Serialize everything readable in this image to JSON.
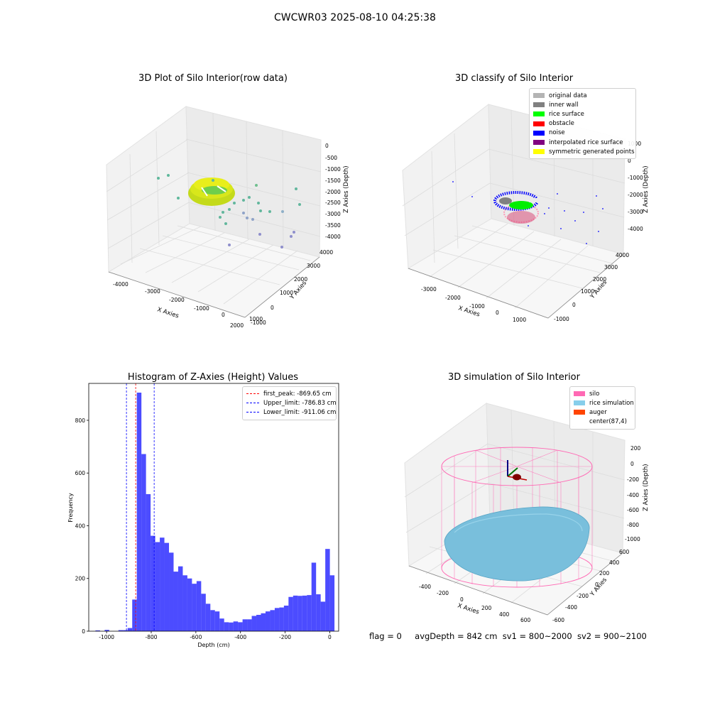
{
  "suptitle": "CWCWR03 2025-08-10 04:25:38",
  "panels": {
    "raw": {
      "title": "3D Plot of Silo Interior(row data)",
      "xlabel": "X Axies",
      "ylabel": "Y Axies",
      "zlabel": "Z Axies (Depth)",
      "xticks": [
        "-4000",
        "-3000",
        "-2000",
        "-1000",
        "0",
        "1000",
        "2000"
      ],
      "yticks": [
        "-1000",
        "0",
        "1000",
        "2000",
        "3000",
        "4000"
      ],
      "zticks": [
        "0",
        "-500",
        "-1000",
        "-1500",
        "-2000",
        "-2500",
        "-3000",
        "-3500",
        "-4000"
      ]
    },
    "classify": {
      "title": "3D classify of Silo Interior",
      "xlabel": "X Axies",
      "ylabel": "Y Axies",
      "zlabel": "Z Axies (Depth)",
      "xticks": [
        "-3000",
        "-2000",
        "-1000",
        "0",
        "1000"
      ],
      "yticks": [
        "-1000",
        "0",
        "1000",
        "2000",
        "3000",
        "4000"
      ],
      "zticks": [
        "1000",
        "0",
        "-1000",
        "-2000",
        "-3000",
        "-4000"
      ],
      "legend": [
        {
          "label": "original data",
          "color": "#b4b4b4"
        },
        {
          "label": "inner wall",
          "color": "#808080"
        },
        {
          "label": "rice surface",
          "color": "#00ff00"
        },
        {
          "label": "obstacle",
          "color": "#ff0000"
        },
        {
          "label": "noise",
          "color": "#0000ff"
        },
        {
          "label": "interpolated rice surface",
          "color": "#800080"
        },
        {
          "label": "symmetric generated points",
          "color": "#ffff00"
        }
      ]
    },
    "simulation": {
      "title": "3D simulation of Silo Interior",
      "xlabel": "X Axies",
      "ylabel": "Y Axies",
      "zlabel": "Z Axies (Depth)",
      "xticks": [
        "-400",
        "-200",
        "0",
        "200",
        "400",
        "600"
      ],
      "yticks": [
        "-600",
        "-400",
        "-200",
        "0",
        "200",
        "400",
        "600"
      ],
      "zticks": [
        "200",
        "0",
        "-200",
        "-400",
        "-600",
        "-800",
        "-1000"
      ],
      "legend": [
        {
          "label": "silo",
          "color": "#ff69b4"
        },
        {
          "label": "rice simulation",
          "color": "#87ceeb"
        },
        {
          "label": "auger",
          "color": "#ff4500"
        },
        {
          "label": "center(87,4)",
          "color": "#ffffff"
        }
      ]
    }
  },
  "footer": {
    "flag": "flag = 0",
    "avg": "avgDepth = 842 cm",
    "sv1": "sv1 = 800~2000",
    "sv2": "sv2 = 900~2100"
  },
  "chart_data": [
    {
      "type": "bar",
      "title": "Histogram of Z-Axies (Height) Values",
      "xlabel": "Depth (cm)",
      "ylabel": "Frequency",
      "bar_color": "#0000ff",
      "bin_start": -1050,
      "bin_width": 20.6,
      "values": [
        3,
        0,
        5,
        0,
        0,
        4,
        4,
        12,
        120,
        905,
        672,
        520,
        362,
        338,
        355,
        335,
        298,
        226,
        246,
        212,
        200,
        180,
        190,
        142,
        104,
        80,
        75,
        48,
        34,
        33,
        37,
        34,
        45,
        45,
        58,
        62,
        68,
        75,
        80,
        88,
        90,
        97,
        130,
        135,
        134,
        135,
        137,
        260,
        140,
        112,
        312,
        212
      ],
      "xlim": [
        -1080,
        40
      ],
      "ylim": [
        0,
        940
      ],
      "xticks": [
        "-1000",
        "-800",
        "-600",
        "-400",
        "-200",
        "0"
      ],
      "yticks": [
        "0",
        "200",
        "400",
        "600",
        "800"
      ],
      "vlines": [
        {
          "label": "first_peak: -869.65 cm",
          "value": -869.65,
          "color": "#ff0000"
        },
        {
          "label": "Upper_limit: -786.83 cm",
          "value": -786.83,
          "color": "#0000ff"
        },
        {
          "label": "Lower_limit: -911.06 cm",
          "value": -911.06,
          "color": "#0000ff"
        }
      ]
    }
  ]
}
